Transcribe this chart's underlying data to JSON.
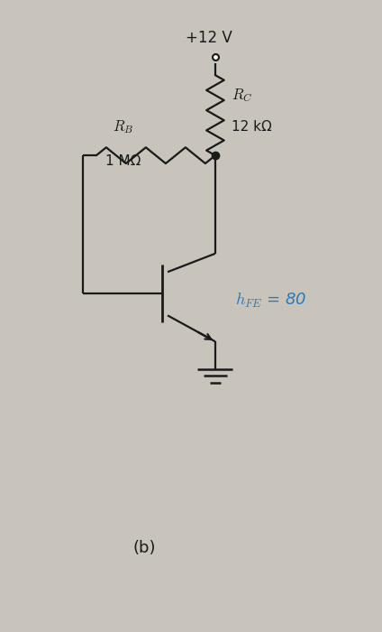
{
  "bg_color": "#c8c4bc",
  "line_color": "#1a1a1a",
  "blue_color": "#2a7ab8",
  "vcc_label": "+12 V",
  "rb_label1": "$R_B$",
  "rb_label2": "1 MΩ",
  "rc_label1": "$R_C$",
  "rc_label2": "12 kΩ",
  "bottom_label": "(b)",
  "title_fontsize": 12,
  "label_fontsize": 11,
  "hfe_fontsize": 13
}
